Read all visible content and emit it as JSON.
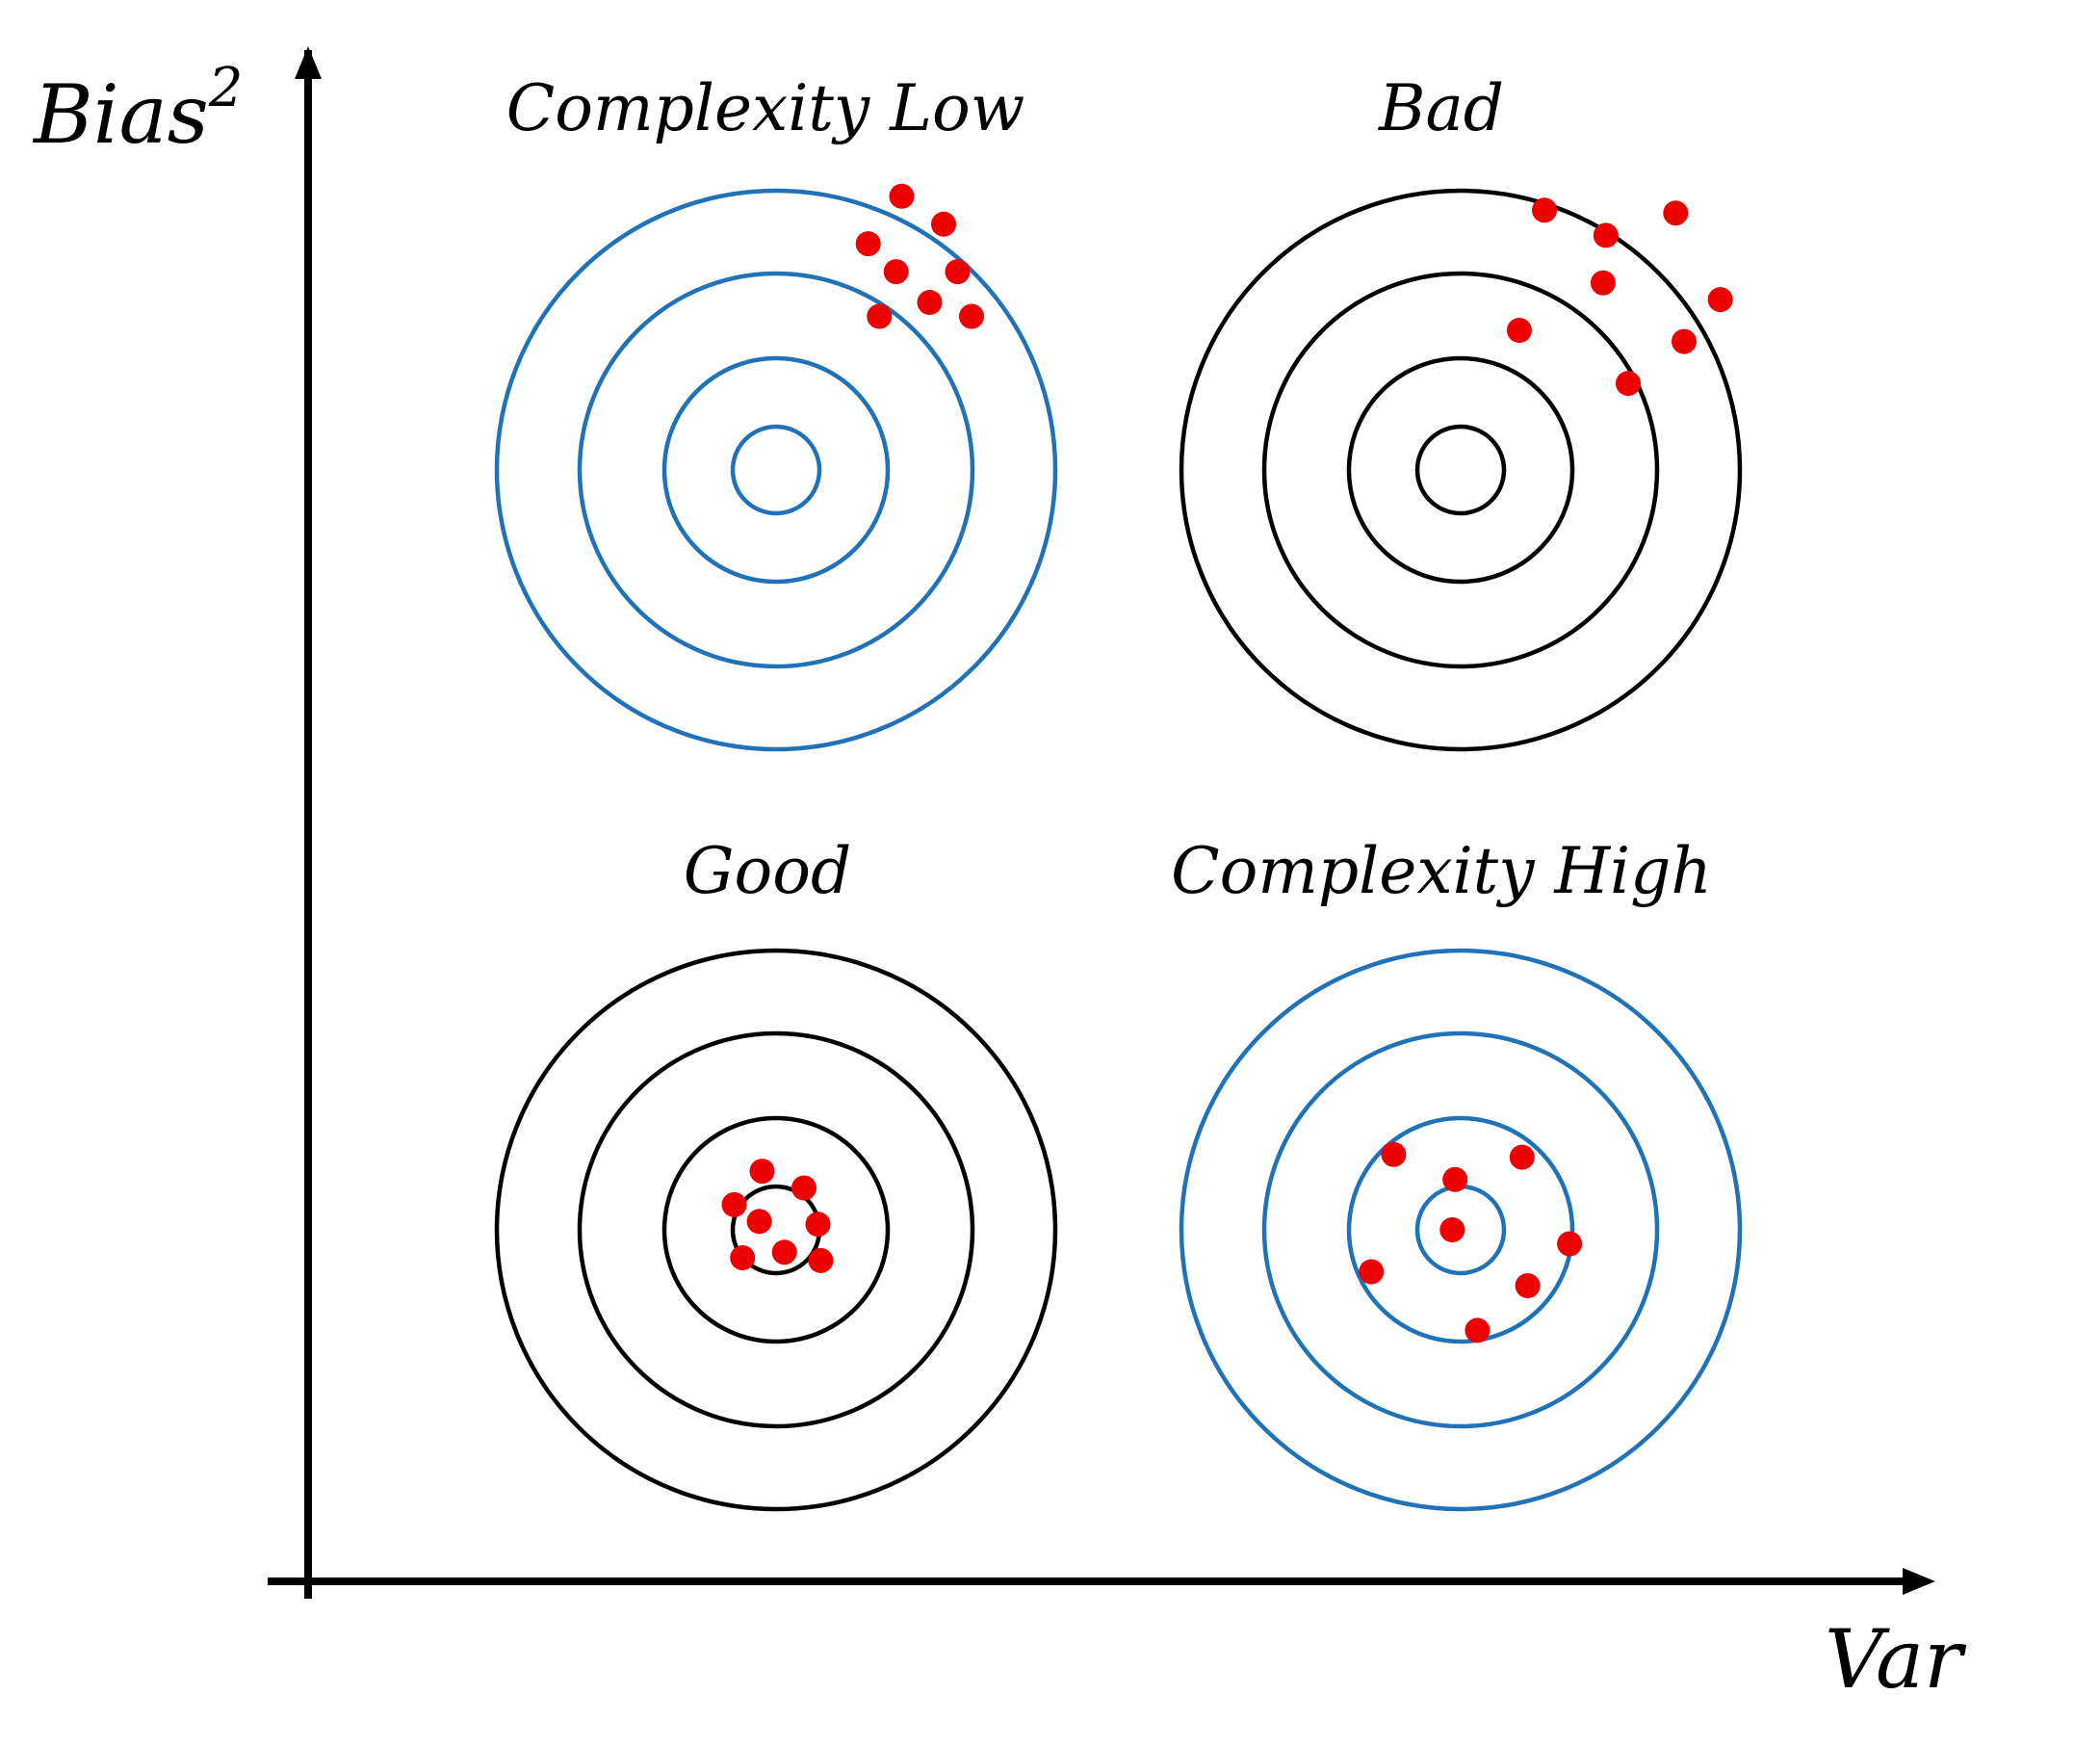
{
  "axes": {
    "y_label": "Bias",
    "y_label_exponent": "2",
    "x_label": "Var"
  },
  "ring_colors": {
    "blue": "#1f72b8",
    "black": "#000000"
  },
  "hit_color": "#ee0000",
  "targets": [
    {
      "id": "complexity-low",
      "title": "Complexity Low",
      "ring_color": "blue",
      "hits": [
        [
          0.45,
          0.98
        ],
        [
          0.6,
          0.88
        ],
        [
          0.33,
          0.81
        ],
        [
          0.43,
          0.71
        ],
        [
          0.65,
          0.71
        ],
        [
          0.37,
          0.55
        ],
        [
          0.55,
          0.6
        ],
        [
          0.7,
          0.55
        ]
      ]
    },
    {
      "id": "bad",
      "title": "Bad",
      "ring_color": "black",
      "hits": [
        [
          0.3,
          0.93
        ],
        [
          0.52,
          0.84
        ],
        [
          0.77,
          0.92
        ],
        [
          0.51,
          0.67
        ],
        [
          0.93,
          0.61
        ],
        [
          0.21,
          0.5
        ],
        [
          0.8,
          0.46
        ],
        [
          0.6,
          0.31
        ]
      ]
    },
    {
      "id": "good",
      "title": "Good",
      "ring_color": "black",
      "hits": [
        [
          -0.05,
          0.21
        ],
        [
          0.1,
          0.15
        ],
        [
          -0.15,
          0.09
        ],
        [
          -0.06,
          0.03
        ],
        [
          0.15,
          0.02
        ],
        [
          -0.12,
          -0.1
        ],
        [
          0.03,
          -0.08
        ],
        [
          0.16,
          -0.11
        ]
      ]
    },
    {
      "id": "complexity-high",
      "title": "Complexity High",
      "ring_color": "blue",
      "hits": [
        [
          -0.24,
          0.27
        ],
        [
          -0.02,
          0.18
        ],
        [
          0.22,
          0.26
        ],
        [
          -0.03,
          0.0
        ],
        [
          0.39,
          -0.05
        ],
        [
          -0.32,
          -0.15
        ],
        [
          0.24,
          -0.2
        ],
        [
          0.06,
          -0.36
        ]
      ]
    }
  ]
}
